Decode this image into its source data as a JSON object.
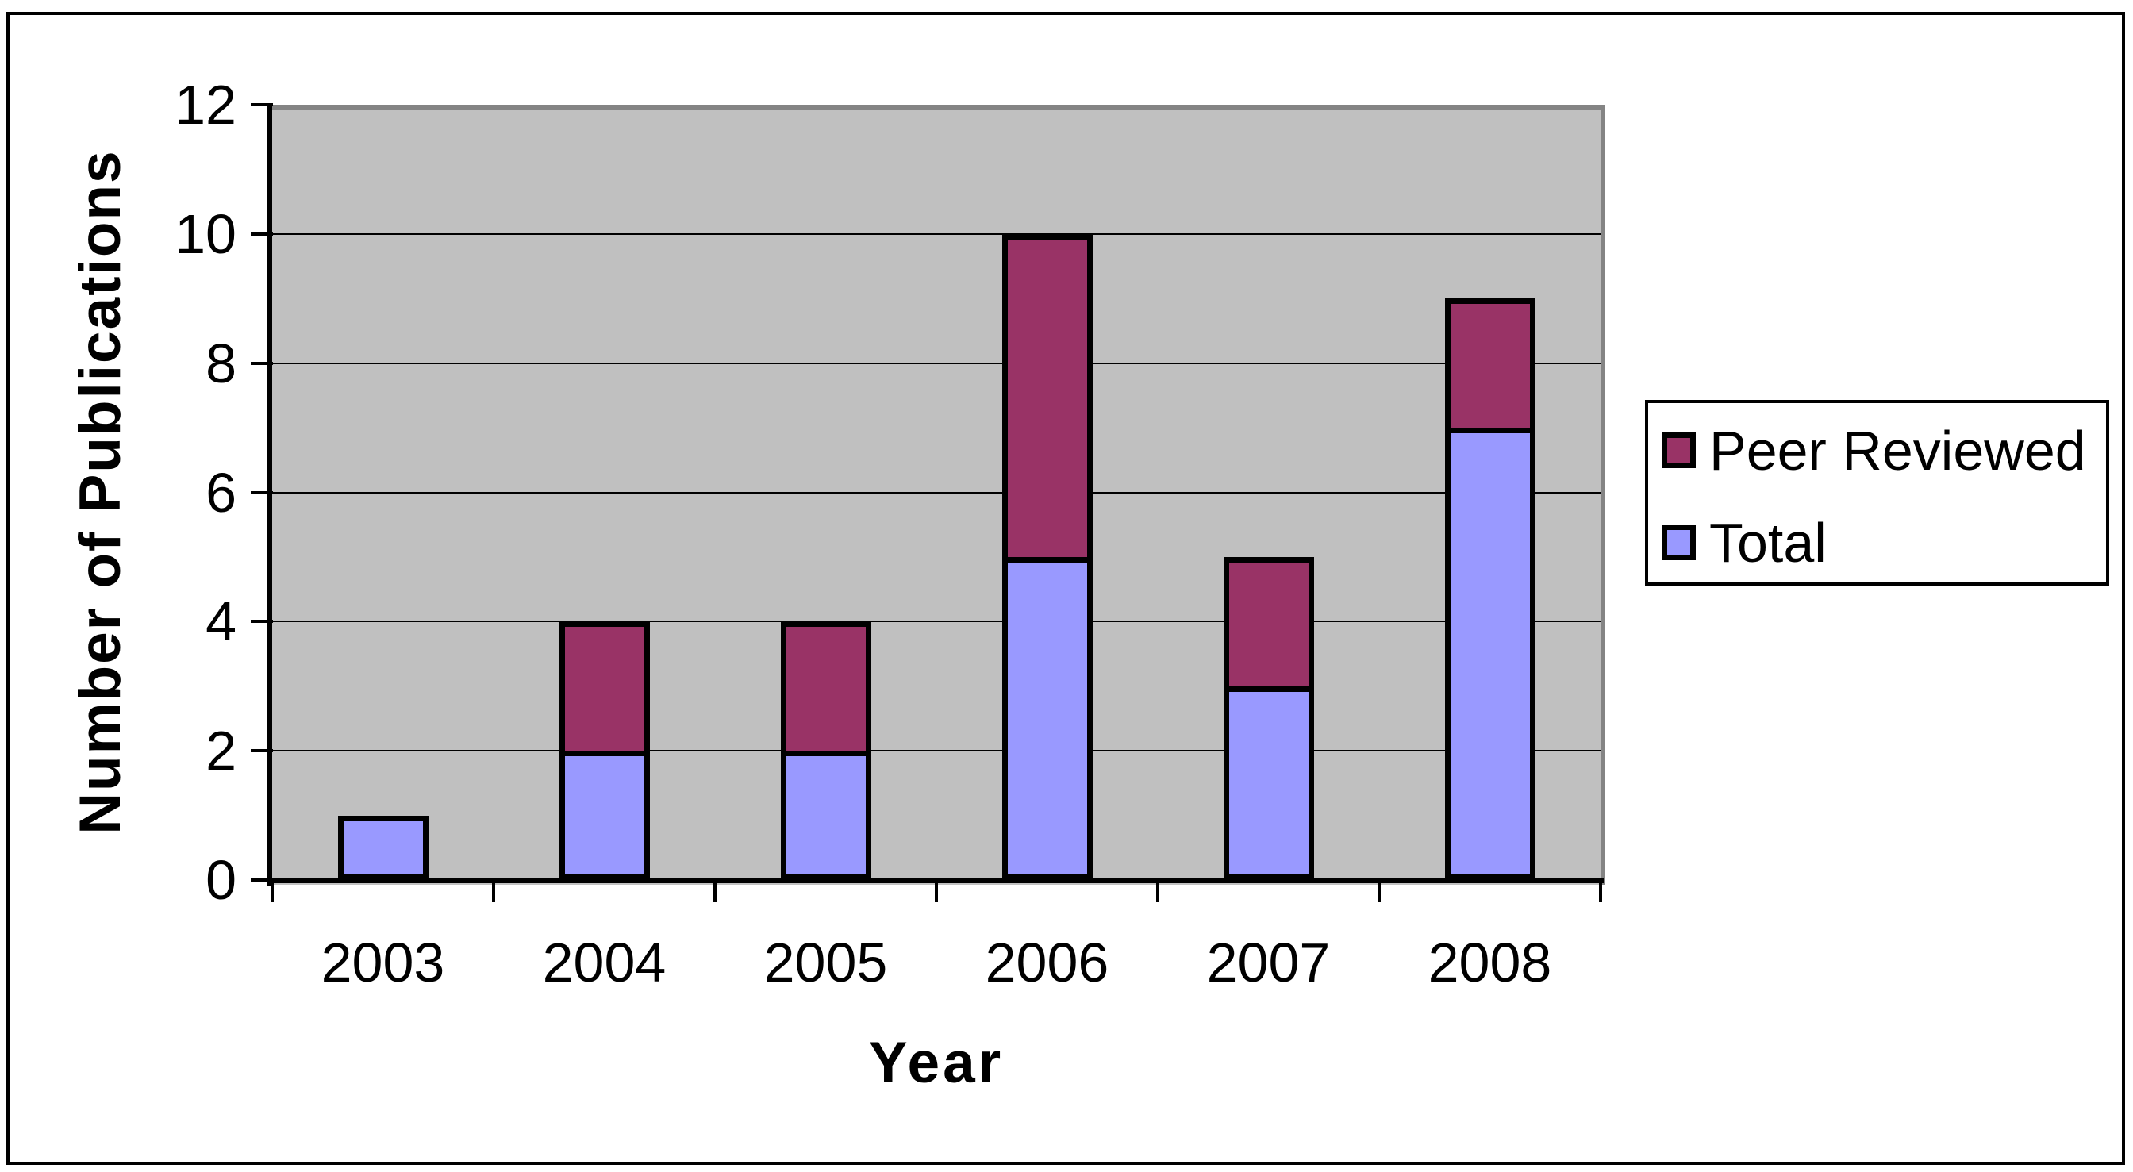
{
  "chart": {
    "y_axis": {
      "title": "Number of Publications",
      "tick_labels": [
        "0",
        "2",
        "4",
        "6",
        "8",
        "10",
        "12"
      ]
    },
    "x_axis": {
      "title": "Year",
      "category_labels": [
        "2003",
        "2004",
        "2005",
        "2006",
        "2007",
        "2008"
      ]
    },
    "legend": {
      "entries": [
        {
          "label": "Peer Reviewed",
          "color": "#993366"
        },
        {
          "label": "Total",
          "color": "#9999FF"
        }
      ]
    }
  },
  "chart_data": {
    "type": "bar",
    "stacked": true,
    "title": "",
    "xlabel": "Year",
    "ylabel": "Number of Publications",
    "categories": [
      "2003",
      "2004",
      "2005",
      "2006",
      "2007",
      "2008"
    ],
    "series": [
      {
        "name": "Total",
        "color": "#9999FF",
        "values": [
          1,
          2,
          2,
          5,
          3,
          7
        ]
      },
      {
        "name": "Peer Reviewed",
        "color": "#993366",
        "values": [
          0,
          2,
          2,
          5,
          2,
          2
        ]
      }
    ],
    "stacked_totals": [
      1,
      4,
      4,
      10,
      5,
      9
    ],
    "ylim": [
      0,
      12
    ],
    "ytick_step": 2,
    "grid": true,
    "gridline_levels": [
      2,
      4,
      6,
      8,
      10
    ],
    "legend_position": "right",
    "plot_background": "#C0C0C0",
    "plot_shadow_color": "#848484",
    "bar_border_color": "#000000"
  }
}
